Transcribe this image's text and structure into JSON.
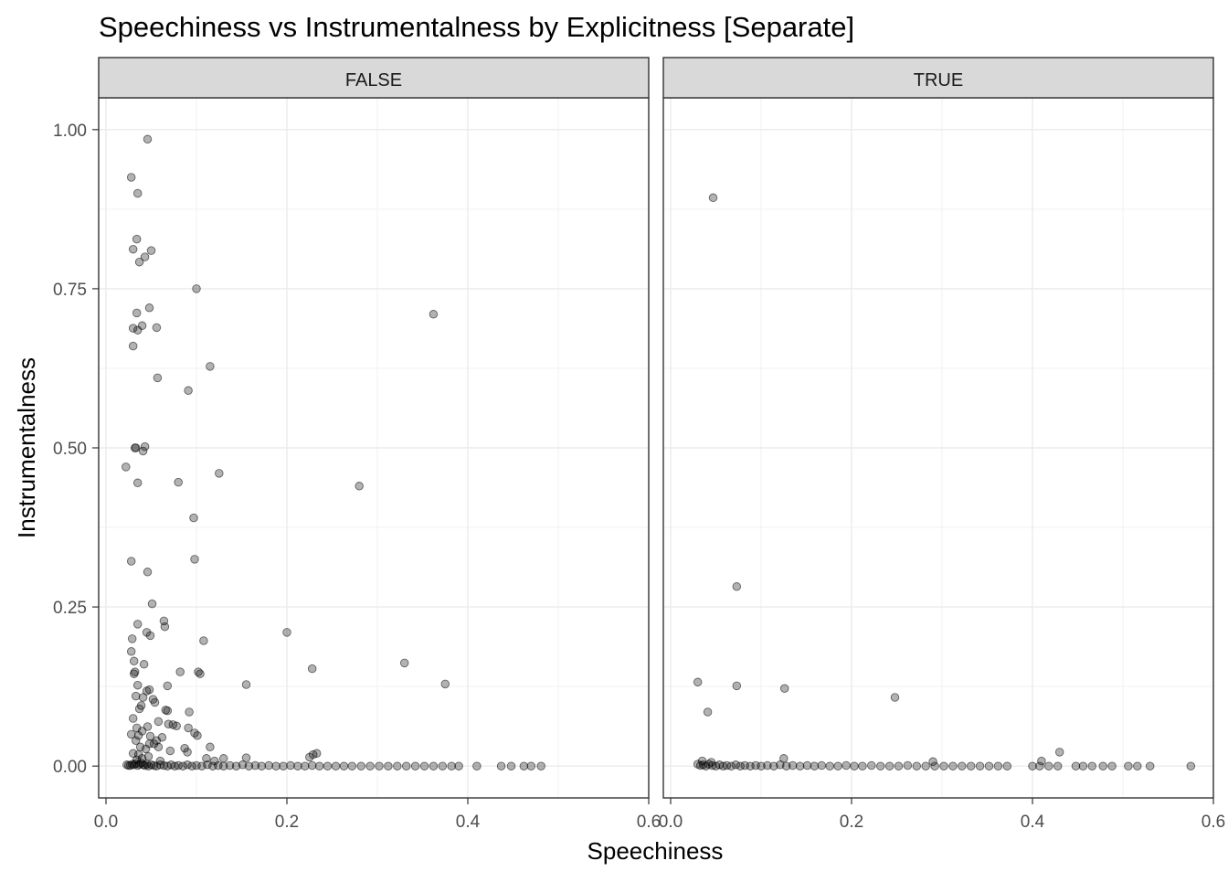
{
  "chart_data": {
    "type": "scatter",
    "title": "Speechiness vs Instrumentalness by Explicitness [Separate]",
    "xlabel": "Speechiness",
    "ylabel": "Instrumentalness",
    "xlim": [
      0,
      0.6
    ],
    "ylim": [
      -0.05,
      1.05
    ],
    "x_ticks": [
      {
        "value": 0.0,
        "label": "0.0"
      },
      {
        "value": 0.2,
        "label": "0.2"
      },
      {
        "value": 0.4,
        "label": "0.4"
      },
      {
        "value": 0.6,
        "label": "0.6"
      }
    ],
    "y_ticks": [
      {
        "value": 0.0,
        "label": "0.00"
      },
      {
        "value": 0.25,
        "label": "0.25"
      },
      {
        "value": 0.5,
        "label": "0.50"
      },
      {
        "value": 0.75,
        "label": "0.75"
      },
      {
        "value": 1.0,
        "label": "1.00"
      }
    ],
    "grid": true,
    "point_color": "#000000",
    "point_opacity": 0.3,
    "strip_fill": "#d9d9d9",
    "panels": [
      {
        "label": "FALSE",
        "points": [
          [
            0.046,
            0.985
          ],
          [
            0.028,
            0.925
          ],
          [
            0.035,
            0.9
          ],
          [
            0.034,
            0.828
          ],
          [
            0.05,
            0.81
          ],
          [
            0.03,
            0.812
          ],
          [
            0.043,
            0.8
          ],
          [
            0.037,
            0.792
          ],
          [
            0.1,
            0.75
          ],
          [
            0.362,
            0.71
          ],
          [
            0.048,
            0.72
          ],
          [
            0.034,
            0.712
          ],
          [
            0.04,
            0.692
          ],
          [
            0.056,
            0.689
          ],
          [
            0.03,
            0.688
          ],
          [
            0.035,
            0.685
          ],
          [
            0.03,
            0.66
          ],
          [
            0.115,
            0.628
          ],
          [
            0.057,
            0.61
          ],
          [
            0.091,
            0.59
          ],
          [
            0.043,
            0.502
          ],
          [
            0.032,
            0.5
          ],
          [
            0.033,
            0.5
          ],
          [
            0.041,
            0.495
          ],
          [
            0.022,
            0.47
          ],
          [
            0.125,
            0.46
          ],
          [
            0.08,
            0.446
          ],
          [
            0.035,
            0.445
          ],
          [
            0.28,
            0.44
          ],
          [
            0.097,
            0.39
          ],
          [
            0.028,
            0.322
          ],
          [
            0.098,
            0.325
          ],
          [
            0.046,
            0.305
          ],
          [
            0.051,
            0.255
          ],
          [
            0.064,
            0.228
          ],
          [
            0.035,
            0.223
          ],
          [
            0.065,
            0.219
          ],
          [
            0.045,
            0.21
          ],
          [
            0.049,
            0.205
          ],
          [
            0.2,
            0.21
          ],
          [
            0.029,
            0.2
          ],
          [
            0.108,
            0.197
          ],
          [
            0.028,
            0.18
          ],
          [
            0.031,
            0.165
          ],
          [
            0.042,
            0.16
          ],
          [
            0.33,
            0.162
          ],
          [
            0.228,
            0.153
          ],
          [
            0.082,
            0.148
          ],
          [
            0.102,
            0.148
          ],
          [
            0.104,
            0.145
          ],
          [
            0.032,
            0.148
          ],
          [
            0.031,
            0.145
          ],
          [
            0.375,
            0.129
          ],
          [
            0.155,
            0.128
          ],
          [
            0.035,
            0.127
          ],
          [
            0.068,
            0.126
          ],
          [
            0.048,
            0.12
          ],
          [
            0.045,
            0.118
          ],
          [
            0.033,
            0.11
          ],
          [
            0.041,
            0.108
          ],
          [
            0.052,
            0.105
          ],
          [
            0.054,
            0.1
          ],
          [
            0.039,
            0.095
          ],
          [
            0.037,
            0.09
          ],
          [
            0.066,
            0.088
          ],
          [
            0.068,
            0.087
          ],
          [
            0.092,
            0.085
          ],
          [
            0.03,
            0.075
          ],
          [
            0.058,
            0.07
          ],
          [
            0.069,
            0.066
          ],
          [
            0.074,
            0.065
          ],
          [
            0.078,
            0.063
          ],
          [
            0.046,
            0.062
          ],
          [
            0.091,
            0.06
          ],
          [
            0.034,
            0.06
          ],
          [
            0.04,
            0.055
          ],
          [
            0.028,
            0.05
          ],
          [
            0.036,
            0.048
          ],
          [
            0.049,
            0.047
          ],
          [
            0.098,
            0.052
          ],
          [
            0.101,
            0.048
          ],
          [
            0.062,
            0.045
          ],
          [
            0.056,
            0.04
          ],
          [
            0.033,
            0.04
          ],
          [
            0.048,
            0.035
          ],
          [
            0.053,
            0.035
          ],
          [
            0.038,
            0.03
          ],
          [
            0.115,
            0.03
          ],
          [
            0.058,
            0.03
          ],
          [
            0.087,
            0.028
          ],
          [
            0.044,
            0.027
          ],
          [
            0.071,
            0.024
          ],
          [
            0.09,
            0.022
          ],
          [
            0.03,
            0.02
          ],
          [
            0.036,
            0.018
          ],
          [
            0.229,
            0.018
          ],
          [
            0.233,
            0.02
          ],
          [
            0.225,
            0.014
          ],
          [
            0.047,
            0.015
          ],
          [
            0.04,
            0.012
          ],
          [
            0.111,
            0.012
          ],
          [
            0.155,
            0.013
          ],
          [
            0.13,
            0.012
          ],
          [
            0.034,
            0.01
          ],
          [
            0.06,
            0.008
          ],
          [
            0.12,
            0.008
          ],
          [
            0.023,
            0.002
          ],
          [
            0.025,
            0.001
          ],
          [
            0.027,
            0.001
          ],
          [
            0.029,
            0.003
          ],
          [
            0.031,
            0.002
          ],
          [
            0.033,
            0.004
          ],
          [
            0.035,
            0.001
          ],
          [
            0.037,
            0.003
          ],
          [
            0.039,
            0.005
          ],
          [
            0.041,
            0.002
          ],
          [
            0.043,
            0.001
          ],
          [
            0.045,
            0.003
          ],
          [
            0.047,
            0.0
          ],
          [
            0.05,
            0.002
          ],
          [
            0.053,
            0.001
          ],
          [
            0.056,
            0.0
          ],
          [
            0.06,
            0.002
          ],
          [
            0.064,
            0.001
          ],
          [
            0.068,
            0.0
          ],
          [
            0.072,
            0.002
          ],
          [
            0.076,
            0.0
          ],
          [
            0.08,
            0.001
          ],
          [
            0.085,
            0.0
          ],
          [
            0.09,
            0.002
          ],
          [
            0.095,
            0.0
          ],
          [
            0.1,
            0.001
          ],
          [
            0.106,
            0.0
          ],
          [
            0.112,
            0.002
          ],
          [
            0.118,
            0.0
          ],
          [
            0.124,
            0.001
          ],
          [
            0.13,
            0.0
          ],
          [
            0.137,
            0.001
          ],
          [
            0.144,
            0.0
          ],
          [
            0.151,
            0.002
          ],
          [
            0.158,
            0.0
          ],
          [
            0.165,
            0.001
          ],
          [
            0.172,
            0.0
          ],
          [
            0.18,
            0.001
          ],
          [
            0.188,
            0.0
          ],
          [
            0.196,
            0.0
          ],
          [
            0.204,
            0.001
          ],
          [
            0.212,
            0.0
          ],
          [
            0.22,
            0.0
          ],
          [
            0.228,
            0.001
          ],
          [
            0.236,
            0.0
          ],
          [
            0.245,
            0.0
          ],
          [
            0.254,
            0.0
          ],
          [
            0.263,
            0.0
          ],
          [
            0.272,
            0.0
          ],
          [
            0.282,
            0.0
          ],
          [
            0.292,
            0.0
          ],
          [
            0.302,
            0.0
          ],
          [
            0.312,
            0.0
          ],
          [
            0.322,
            0.0
          ],
          [
            0.332,
            0.0
          ],
          [
            0.342,
            0.0
          ],
          [
            0.352,
            0.0
          ],
          [
            0.362,
            0.0
          ],
          [
            0.372,
            0.0
          ],
          [
            0.382,
            0.0
          ],
          [
            0.39,
            0.0
          ],
          [
            0.41,
            0.0
          ],
          [
            0.437,
            0.0
          ],
          [
            0.448,
            0.0
          ],
          [
            0.462,
            0.0
          ],
          [
            0.47,
            0.0
          ],
          [
            0.481,
            0.0
          ]
        ]
      },
      {
        "label": "TRUE",
        "points": [
          [
            0.047,
            0.893
          ],
          [
            0.073,
            0.282
          ],
          [
            0.03,
            0.132
          ],
          [
            0.073,
            0.126
          ],
          [
            0.126,
            0.122
          ],
          [
            0.248,
            0.108
          ],
          [
            0.041,
            0.085
          ],
          [
            0.43,
            0.022
          ],
          [
            0.125,
            0.012
          ],
          [
            0.41,
            0.008
          ],
          [
            0.29,
            0.007
          ],
          [
            0.035,
            0.008
          ],
          [
            0.045,
            0.006
          ],
          [
            0.03,
            0.003
          ],
          [
            0.033,
            0.001
          ],
          [
            0.036,
            0.002
          ],
          [
            0.039,
            0.0
          ],
          [
            0.042,
            0.003
          ],
          [
            0.046,
            0.001
          ],
          [
            0.05,
            0.0
          ],
          [
            0.054,
            0.002
          ],
          [
            0.058,
            0.0
          ],
          [
            0.062,
            0.001
          ],
          [
            0.067,
            0.0
          ],
          [
            0.072,
            0.002
          ],
          [
            0.077,
            0.0
          ],
          [
            0.082,
            0.001
          ],
          [
            0.088,
            0.0
          ],
          [
            0.094,
            0.001
          ],
          [
            0.1,
            0.0
          ],
          [
            0.107,
            0.001
          ],
          [
            0.114,
            0.0
          ],
          [
            0.121,
            0.002
          ],
          [
            0.128,
            0.0
          ],
          [
            0.135,
            0.001
          ],
          [
            0.143,
            0.0
          ],
          [
            0.151,
            0.001
          ],
          [
            0.159,
            0.0
          ],
          [
            0.167,
            0.001
          ],
          [
            0.176,
            0.0
          ],
          [
            0.185,
            0.0
          ],
          [
            0.194,
            0.001
          ],
          [
            0.203,
            0.0
          ],
          [
            0.212,
            0.0
          ],
          [
            0.222,
            0.001
          ],
          [
            0.232,
            0.0
          ],
          [
            0.242,
            0.0
          ],
          [
            0.252,
            0.0
          ],
          [
            0.262,
            0.001
          ],
          [
            0.272,
            0.0
          ],
          [
            0.282,
            0.0
          ],
          [
            0.292,
            0.0
          ],
          [
            0.302,
            0.0
          ],
          [
            0.312,
            0.0
          ],
          [
            0.322,
            0.0
          ],
          [
            0.332,
            0.0
          ],
          [
            0.342,
            0.0
          ],
          [
            0.352,
            0.0
          ],
          [
            0.362,
            0.0
          ],
          [
            0.372,
            0.0
          ],
          [
            0.4,
            0.0
          ],
          [
            0.408,
            0.0
          ],
          [
            0.418,
            0.0
          ],
          [
            0.428,
            0.0
          ],
          [
            0.448,
            0.0
          ],
          [
            0.456,
            0.0
          ],
          [
            0.466,
            0.0
          ],
          [
            0.478,
            0.0
          ],
          [
            0.488,
            0.0
          ],
          [
            0.506,
            0.0
          ],
          [
            0.516,
            0.0
          ],
          [
            0.53,
            0.0
          ],
          [
            0.575,
            0.0
          ]
        ]
      }
    ]
  }
}
